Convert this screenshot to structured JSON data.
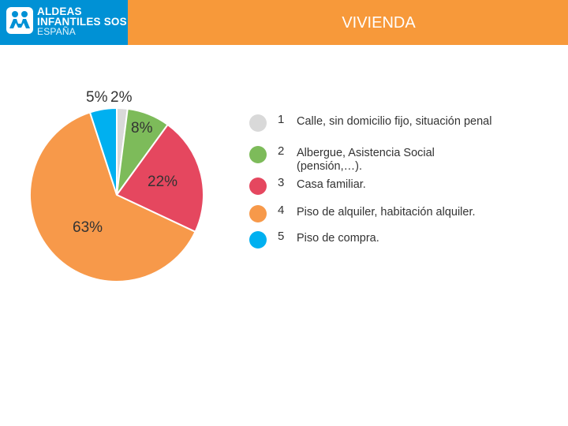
{
  "header": {
    "brand_line1": "ALDEAS",
    "brand_line2": "INFANTILES SOS",
    "brand_line3": "ESPAÑA",
    "logo_icon": "sos-children-icon",
    "title": "VIVIENDA",
    "bar_color": "#f7993a",
    "logo_bg_color": "#0091d5"
  },
  "chart_data": {
    "type": "pie",
    "title": "",
    "categories": [
      "Calle, sin domicilio fijo, situación penal",
      "Albergue, Asistencia Social (pensión,…).",
      "Casa familiar.",
      "Piso de alquiler, habitación alquiler.",
      "Piso de compra."
    ],
    "values": [
      2,
      8,
      22,
      63,
      5
    ],
    "value_labels": [
      "2%",
      "8%",
      "22%",
      "63%",
      "5%"
    ],
    "colors": [
      "#d9d9d9",
      "#7dbb5a",
      "#e5475f",
      "#f7994a",
      "#00b0f0"
    ],
    "legend_numbers": [
      "1",
      "2",
      "3",
      "4",
      "5"
    ],
    "legend_placement": "right"
  }
}
